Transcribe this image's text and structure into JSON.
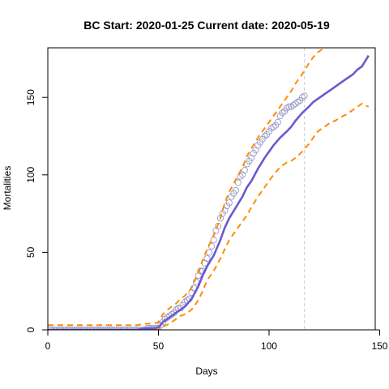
{
  "chart_data": {
    "type": "line",
    "title": "BC Start:  2020-01-25   Current date:  2020-05-19",
    "xlabel": "Days",
    "ylabel": "Mortalities",
    "xlim": [
      0,
      148
    ],
    "ylim": [
      0,
      182
    ],
    "x_ticks": [
      0,
      50,
      100,
      150
    ],
    "y_ticks": [
      0,
      50,
      100,
      150
    ],
    "current_day": 116,
    "grid": false,
    "legend": "none",
    "colors": {
      "observed": "#9a9ac8",
      "fit": "#6a5acd",
      "interval": "#ff8c00",
      "current_line": "#d3d3d3"
    },
    "series": [
      {
        "role": "observed",
        "style": "open-circles",
        "x": [
          1,
          2,
          3,
          4,
          5,
          6,
          7,
          8,
          9,
          10,
          11,
          12,
          13,
          14,
          15,
          16,
          17,
          18,
          19,
          20,
          21,
          22,
          23,
          24,
          25,
          26,
          27,
          28,
          29,
          30,
          31,
          32,
          33,
          34,
          35,
          36,
          37,
          38,
          39,
          40,
          41,
          42,
          43,
          44,
          45,
          46,
          47,
          48,
          49,
          50,
          51,
          52,
          53,
          54,
          55,
          56,
          57,
          58,
          59,
          60,
          61,
          62,
          63,
          64,
          65,
          66,
          67,
          68,
          69,
          70,
          71,
          72,
          73,
          74,
          75,
          76,
          77,
          78,
          79,
          80,
          81,
          82,
          83,
          84,
          85,
          86,
          87,
          88,
          89,
          90,
          91,
          92,
          93,
          94,
          95,
          96,
          97,
          98,
          99,
          100,
          101,
          102,
          103,
          104,
          105,
          106,
          107,
          108,
          109,
          110,
          111,
          112,
          113,
          114,
          115,
          116
        ],
        "y": [
          0,
          0,
          0,
          0,
          0,
          0,
          0,
          0,
          0,
          0,
          0,
          0,
          0,
          0,
          0,
          0,
          0,
          0,
          0,
          0,
          0,
          0,
          0,
          0,
          0,
          0,
          0,
          0,
          0,
          0,
          0,
          0,
          0,
          0,
          0,
          0,
          0,
          0,
          0,
          0,
          0,
          0,
          0,
          0,
          1,
          1,
          1,
          1,
          1,
          1,
          3,
          5,
          7,
          8,
          9,
          10,
          11,
          13,
          14,
          14,
          16,
          18,
          19,
          20,
          24,
          27,
          31,
          35,
          38,
          38,
          43,
          46,
          50,
          54,
          58,
          64,
          67,
          72,
          75,
          77,
          80,
          82,
          86,
          88,
          90,
          95,
          99,
          100,
          103,
          107,
          109,
          111,
          114,
          116,
          119,
          121,
          123,
          125,
          126,
          128,
          130,
          131,
          132,
          134,
          138,
          140,
          141,
          143,
          144,
          144,
          145,
          146,
          147,
          148,
          150,
          151
        ]
      },
      {
        "role": "fit",
        "style": "solid",
        "x": [
          0,
          5,
          10,
          15,
          20,
          25,
          30,
          35,
          40,
          45,
          48,
          50,
          52,
          55,
          58,
          60,
          62,
          65,
          68,
          70,
          72,
          75,
          78,
          80,
          82,
          85,
          88,
          90,
          92,
          95,
          98,
          100,
          102,
          105,
          108,
          110,
          112,
          115,
          118,
          120,
          122,
          125,
          128,
          130,
          132,
          135,
          138,
          140,
          142,
          145
        ],
        "y": [
          0,
          0,
          0,
          0,
          0,
          0,
          0,
          0,
          0,
          1,
          1,
          1.5,
          5,
          8,
          11,
          13,
          15,
          20,
          28,
          35,
          41,
          48,
          58,
          66,
          72,
          79,
          86,
          92,
          96,
          104,
          111,
          115,
          119,
          124,
          128,
          131,
          135,
          140,
          144,
          147,
          149,
          152,
          155,
          157,
          159,
          162,
          165,
          168,
          170,
          177
        ]
      },
      {
        "role": "upper-interval",
        "style": "dashed",
        "x": [
          0,
          5,
          10,
          15,
          20,
          25,
          30,
          35,
          40,
          45,
          48,
          50,
          52,
          55,
          58,
          60,
          62,
          65,
          68,
          70,
          72,
          75,
          78,
          80,
          82,
          85,
          88,
          90,
          92,
          95,
          98,
          100,
          102,
          105,
          108,
          110,
          112,
          115,
          118,
          120,
          122,
          125,
          128,
          130
        ],
        "y": [
          3,
          3,
          3,
          3,
          3,
          3,
          3,
          3,
          3,
          4,
          4,
          5,
          10,
          14,
          17,
          20,
          22,
          27,
          37,
          45,
          52,
          61,
          72,
          82,
          89,
          97,
          105,
          112,
          117,
          124,
          130,
          134,
          138,
          144,
          150,
          154,
          159,
          165,
          172,
          176,
          179,
          182,
          185,
          188
        ]
      },
      {
        "role": "lower-interval",
        "style": "dashed",
        "x": [
          0,
          5,
          10,
          15,
          20,
          25,
          30,
          35,
          40,
          45,
          48,
          50,
          52,
          55,
          58,
          60,
          62,
          65,
          68,
          70,
          72,
          75,
          78,
          80,
          82,
          85,
          88,
          90,
          92,
          95,
          98,
          100,
          102,
          105,
          108,
          110,
          112,
          115,
          118,
          120,
          122,
          125,
          128,
          130,
          132,
          135,
          138,
          140,
          142,
          145
        ],
        "y": [
          0,
          0,
          0,
          0,
          0,
          0,
          0,
          0,
          0,
          0,
          0,
          0,
          2,
          4,
          7,
          9,
          10,
          13,
          19,
          25,
          32,
          38,
          46,
          52,
          58,
          64,
          70,
          74,
          79,
          86,
          92,
          96,
          100,
          105,
          108,
          109,
          111,
          115,
          120,
          124,
          128,
          131,
          134,
          135,
          137,
          139,
          142,
          144,
          146,
          144
        ]
      }
    ]
  }
}
